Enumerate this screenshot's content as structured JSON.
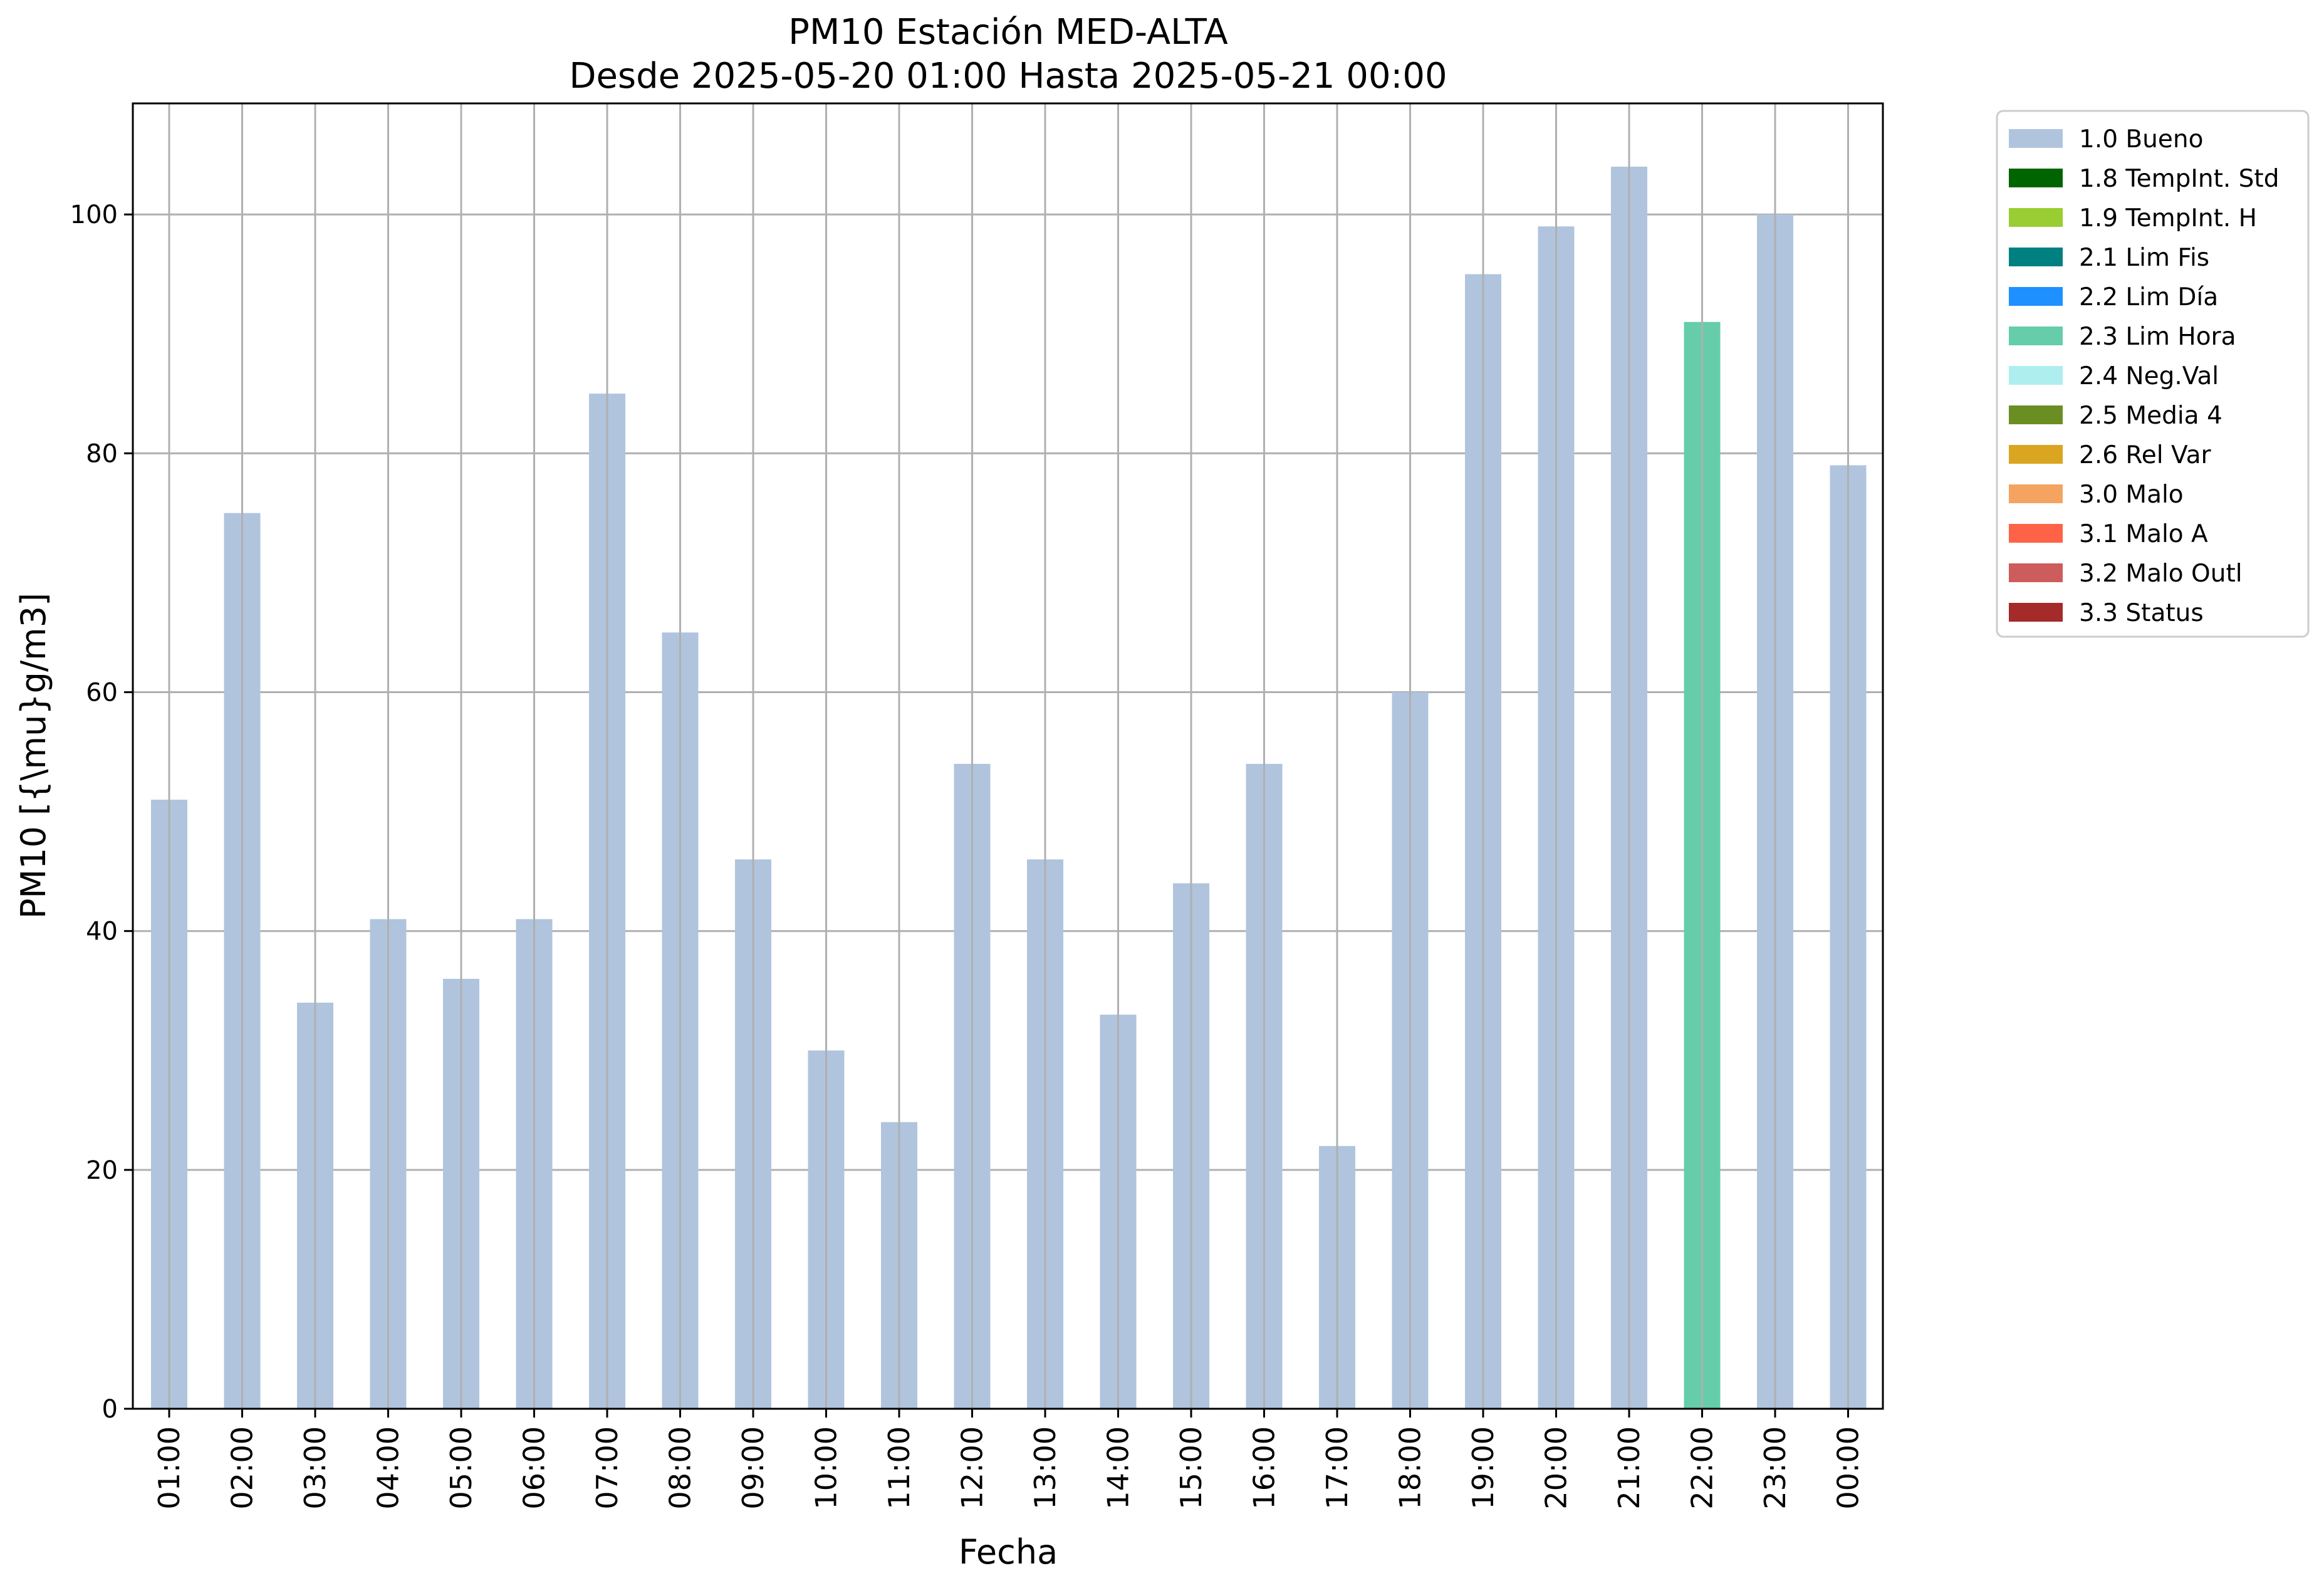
{
  "chart_data": {
    "type": "bar",
    "title": "PM10 Estación MED-ALTA",
    "subtitle": "Desde 2025-05-20 01:00 Hasta 2025-05-21 00:00",
    "xlabel": "Fecha",
    "ylabel": "PM10 [{\\mu}g/m3]",
    "ylim": [
      0,
      109.3
    ],
    "yticks": [
      0,
      20,
      40,
      60,
      80,
      100
    ],
    "grid": true,
    "legend_placement": "outside-top-right",
    "categories": [
      "01:00",
      "02:00",
      "03:00",
      "04:00",
      "05:00",
      "06:00",
      "07:00",
      "08:00",
      "09:00",
      "10:00",
      "11:00",
      "12:00",
      "13:00",
      "14:00",
      "15:00",
      "16:00",
      "17:00",
      "18:00",
      "19:00",
      "20:00",
      "21:00",
      "22:00",
      "23:00",
      "00:00"
    ],
    "values": [
      51,
      75,
      34,
      41,
      36,
      41,
      85,
      65,
      46,
      30,
      24,
      54,
      46,
      33,
      44,
      54,
      22,
      60,
      95,
      99,
      104,
      91,
      100,
      79
    ],
    "flags": [
      "1.0 Bueno",
      "1.0 Bueno",
      "1.0 Bueno",
      "1.0 Bueno",
      "1.0 Bueno",
      "1.0 Bueno",
      "1.0 Bueno",
      "1.0 Bueno",
      "1.0 Bueno",
      "1.0 Bueno",
      "1.0 Bueno",
      "1.0 Bueno",
      "1.0 Bueno",
      "1.0 Bueno",
      "1.0 Bueno",
      "1.0 Bueno",
      "1.0 Bueno",
      "1.0 Bueno",
      "1.0 Bueno",
      "1.0 Bueno",
      "1.0 Bueno",
      "2.3 Lim Hora",
      "1.0 Bueno",
      "1.0 Bueno"
    ],
    "legend": [
      {
        "label": "1.0 Bueno",
        "color": "#b0c4de"
      },
      {
        "label": "1.8 TempInt. Std",
        "color": "#006400"
      },
      {
        "label": "1.9 TempInt. H",
        "color": "#9acd32"
      },
      {
        "label": "2.1 Lim Fis",
        "color": "#008080"
      },
      {
        "label": "2.2 Lim Día",
        "color": "#1e90ff"
      },
      {
        "label": "2.3 Lim Hora",
        "color": "#66cdaa"
      },
      {
        "label": "2.4 Neg.Val",
        "color": "#afeeee"
      },
      {
        "label": "2.5 Media 4",
        "color": "#6b8e23"
      },
      {
        "label": "2.6 Rel Var",
        "color": "#daa520"
      },
      {
        "label": "3.0 Malo",
        "color": "#f4a460"
      },
      {
        "label": "3.1 Malo A",
        "color": "#ff6347"
      },
      {
        "label": "3.2 Malo Outl",
        "color": "#cd5c5c"
      },
      {
        "label": "3.3 Status",
        "color": "#a52a2a"
      }
    ]
  }
}
